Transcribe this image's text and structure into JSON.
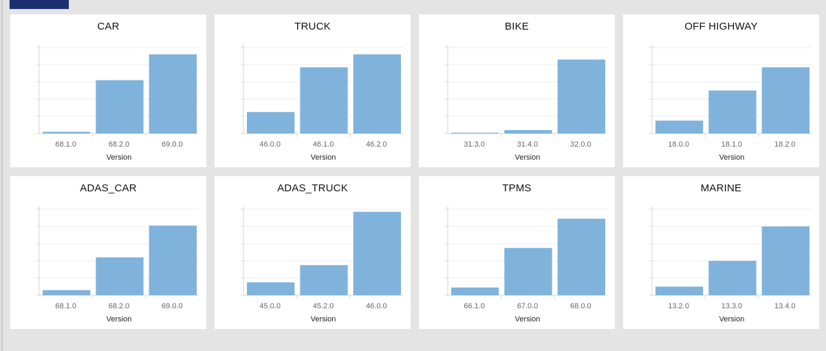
{
  "colors": {
    "bar": "#80b3dc",
    "grid": "#ececec",
    "axis": "#d6d6d6"
  },
  "chart_data": [
    {
      "type": "bar",
      "title": "CAR",
      "xlabel": "Version",
      "categories": [
        "68.1.0",
        "68.2.0",
        "69.0.0"
      ],
      "values": [
        2,
        62,
        92
      ],
      "ylim": [
        0,
        100
      ],
      "grid": true
    },
    {
      "type": "bar",
      "title": "TRUCK",
      "xlabel": "Version",
      "categories": [
        "46.0.0",
        "46.1.0",
        "46.2.0"
      ],
      "values": [
        25,
        77,
        92
      ],
      "ylim": [
        0,
        100
      ],
      "grid": true
    },
    {
      "type": "bar",
      "title": "BIKE",
      "xlabel": "Version",
      "categories": [
        "31.3.0",
        "31.4.0",
        "32.0.0"
      ],
      "values": [
        1,
        4,
        86
      ],
      "ylim": [
        0,
        100
      ],
      "grid": true
    },
    {
      "type": "bar",
      "title": "OFF HIGHWAY",
      "xlabel": "Version",
      "categories": [
        "18.0.0",
        "18.1.0",
        "18.2.0"
      ],
      "values": [
        15,
        50,
        77
      ],
      "ylim": [
        0,
        100
      ],
      "grid": true
    },
    {
      "type": "bar",
      "title": "ADAS_CAR",
      "xlabel": "Version",
      "categories": [
        "68.1.0",
        "68.2.0",
        "69.0.0"
      ],
      "values": [
        6,
        44,
        81
      ],
      "ylim": [
        0,
        100
      ],
      "grid": true
    },
    {
      "type": "bar",
      "title": "ADAS_TRUCK",
      "xlabel": "Version",
      "categories": [
        "45.0.0",
        "45.2.0",
        "46.0.0"
      ],
      "values": [
        15,
        35,
        97
      ],
      "ylim": [
        0,
        100
      ],
      "grid": true
    },
    {
      "type": "bar",
      "title": "TPMS",
      "xlabel": "Version",
      "categories": [
        "66.1.0",
        "67.0.0",
        "68.0.0"
      ],
      "values": [
        9,
        55,
        89
      ],
      "ylim": [
        0,
        100
      ],
      "grid": true
    },
    {
      "type": "bar",
      "title": "MARINE",
      "xlabel": "Version",
      "categories": [
        "13.2.0",
        "13.3.0",
        "13.4.0"
      ],
      "values": [
        10,
        40,
        80
      ],
      "ylim": [
        0,
        100
      ],
      "grid": true
    }
  ]
}
